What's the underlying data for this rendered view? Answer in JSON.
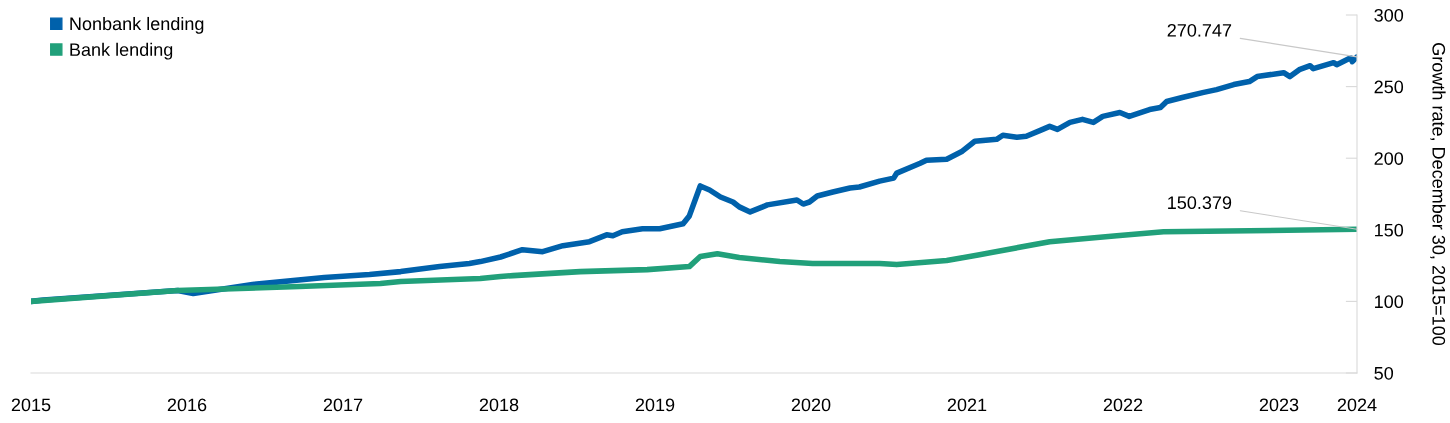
{
  "chart_data": {
    "type": "line",
    "y2label": "Growth rate, December 30, 2015=100",
    "xlim": [
      2015,
      2023.5
    ],
    "xticks": [
      2015,
      2016,
      2017,
      2018,
      2019,
      2020,
      2021,
      2022,
      2023,
      {
        "value": 2023.5,
        "label": "2024"
      }
    ],
    "ylim": [
      50,
      300
    ],
    "yticks": [
      50,
      100,
      150,
      200,
      250,
      300
    ],
    "grid": false,
    "legend": "top left",
    "marker": "none",
    "line_style": "solid",
    "series": [
      {
        "name": "Nonbank lending",
        "color": "#0061ab",
        "x": [
          2015,
          2015.08,
          2015.94,
          2016.04,
          2016.42,
          2016.88,
          2017.17,
          2017.37,
          2017.62,
          2017.81,
          2017.88,
          2018.01,
          2018.15,
          2018.28,
          2018.41,
          2018.58,
          2018.69,
          2018.73,
          2018.79,
          2018.92,
          2019.03,
          2019.18,
          2019.22,
          2019.29,
          2019.35,
          2019.42,
          2019.5,
          2019.54,
          2019.61,
          2019.69,
          2019.72,
          2019.91,
          2019.95,
          2019.99,
          2020.04,
          2020.14,
          2020.25,
          2020.31,
          2020.44,
          2020.53,
          2020.55,
          2020.7,
          2020.74,
          2020.87,
          2020.97,
          2021.05,
          2021.19,
          2021.23,
          2021.32,
          2021.38,
          2021.47,
          2021.53,
          2021.58,
          2021.66,
          2021.74,
          2021.81,
          2021.87,
          2021.98,
          2022.04,
          2022.17,
          2022.24,
          2022.28,
          2022.38,
          2022.51,
          2022.6,
          2022.71,
          2022.81,
          2022.86,
          2023.03,
          2023.07,
          2023.13,
          2023.2,
          2023.22,
          2023.35,
          2023.37,
          2023.46,
          2023.47,
          2023.5
        ],
        "values": [
          100,
          101,
          107.6,
          105.5,
          111.8,
          116.7,
          118.8,
          120.8,
          124.3,
          126.4,
          127.8,
          131,
          136.1,
          134.7,
          138.9,
          141.7,
          146.5,
          145.8,
          148.6,
          150.7,
          150.7,
          154.2,
          159.7,
          180.6,
          177.8,
          172.9,
          169.4,
          166,
          162.5,
          166,
          167.4,
          170.8,
          168,
          169.4,
          173.6,
          176.4,
          179.2,
          179.9,
          184,
          186.1,
          189.6,
          196.5,
          198.6,
          199.3,
          204.9,
          211.8,
          213.2,
          216,
          214.6,
          215.3,
          219.4,
          222.2,
          220.1,
          225,
          227.1,
          225,
          229.2,
          231.9,
          229.2,
          234,
          235.4,
          239.6,
          242.4,
          245.8,
          247.9,
          251.4,
          253.5,
          257,
          259.7,
          257,
          261.8,
          264.6,
          262.5,
          266.7,
          265.3,
          270.1,
          267.4,
          270.747
        ]
      },
      {
        "name": "Bank lending",
        "color": "#21a07a",
        "x": [
          2015,
          2015.94,
          2016.72,
          2017.24,
          2017.37,
          2017.88,
          2018.01,
          2018.09,
          2018.52,
          2018.95,
          2019.22,
          2019.29,
          2019.4,
          2019.54,
          2019.8,
          2020.01,
          2020.44,
          2020.55,
          2020.87,
          2021.08,
          2021.53,
          2021.96,
          2022.26,
          2022.81,
          2023.5
        ],
        "values": [
          100,
          107.6,
          110.4,
          112.5,
          113.9,
          116,
          117.4,
          118,
          120.8,
          122.2,
          124.3,
          131.3,
          133.3,
          130.6,
          127.8,
          126.4,
          126.4,
          125.7,
          128.5,
          132.6,
          141.7,
          145.8,
          148.6,
          149.3,
          150.379
        ]
      }
    ],
    "annotations": [
      {
        "text": "270.747",
        "x": 2023.5,
        "y": 270.747
      },
      {
        "text": "150.379",
        "x": 2023.5,
        "y": 150.379
      }
    ]
  }
}
